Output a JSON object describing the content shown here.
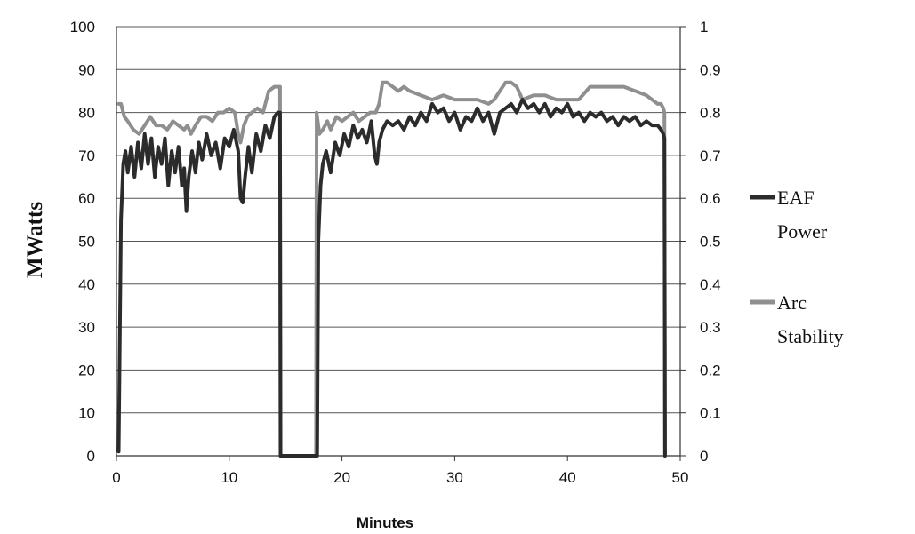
{
  "chart_data": {
    "type": "line",
    "title": "",
    "xlabel": "Minutes",
    "ylabel": "MWatts",
    "xlim": [
      0,
      50
    ],
    "ylim": [
      0,
      100
    ],
    "y2lim": [
      0,
      1
    ],
    "grid": "horizontal",
    "legend_position": "right",
    "x_ticks": [
      "0",
      "10",
      "20",
      "30",
      "40",
      "50"
    ],
    "y_ticks": [
      "0",
      "10",
      "20",
      "30",
      "40",
      "50",
      "60",
      "70",
      "80",
      "90",
      "100"
    ],
    "y2_ticks": [
      "0",
      "0.1",
      "0.2",
      "0.3",
      "0.4",
      "0.5",
      "0.6",
      "0.7",
      "0.8",
      "0.9",
      "1"
    ],
    "series": [
      {
        "name": "EAF Power",
        "legend_lines": [
          "EAF",
          "Power"
        ],
        "axis": "left",
        "color": "#2b2b2b",
        "x": [
          0.2,
          0.4,
          0.6,
          0.8,
          1.0,
          1.3,
          1.6,
          1.9,
          2.2,
          2.5,
          2.8,
          3.1,
          3.4,
          3.7,
          4.0,
          4.3,
          4.6,
          4.9,
          5.2,
          5.5,
          5.8,
          6.0,
          6.2,
          6.4,
          6.7,
          7.0,
          7.3,
          7.6,
          8.0,
          8.4,
          8.8,
          9.2,
          9.6,
          10.0,
          10.4,
          10.8,
          11.0,
          11.2,
          11.4,
          11.7,
          12.0,
          12.4,
          12.8,
          13.2,
          13.6,
          14.0,
          14.3,
          14.5,
          14.55,
          17.7,
          17.8,
          17.9,
          18.1,
          18.3,
          18.6,
          19.0,
          19.4,
          19.8,
          20.2,
          20.6,
          21.0,
          21.4,
          21.8,
          22.2,
          22.6,
          22.9,
          23.1,
          23.3,
          23.6,
          24.0,
          24.5,
          25.0,
          25.5,
          26.0,
          26.5,
          27.0,
          27.5,
          28.0,
          28.5,
          29.0,
          29.5,
          30.0,
          30.5,
          31.0,
          31.5,
          32.0,
          32.5,
          33.0,
          33.5,
          34.0,
          34.5,
          35.0,
          35.5,
          36.0,
          36.5,
          37.0,
          37.5,
          38.0,
          38.5,
          39.0,
          39.5,
          40.0,
          40.5,
          41.0,
          41.5,
          42.0,
          42.5,
          43.0,
          43.5,
          44.0,
          44.5,
          45.0,
          45.5,
          46.0,
          46.5,
          47.0,
          47.5,
          48.0,
          48.3,
          48.5,
          48.6,
          48.65
        ],
        "values": [
          1,
          55,
          68,
          71,
          66,
          72,
          65,
          73,
          67,
          75,
          68,
          74,
          65,
          72,
          68,
          74,
          63,
          71,
          66,
          72,
          63,
          67,
          57,
          65,
          71,
          66,
          73,
          69,
          75,
          70,
          73,
          67,
          74,
          72,
          76,
          71,
          60,
          59,
          65,
          72,
          66,
          75,
          71,
          77,
          74,
          79,
          80,
          80,
          0,
          0,
          0,
          50,
          63,
          68,
          71,
          66,
          73,
          70,
          75,
          72,
          77,
          74,
          76,
          73,
          78,
          70,
          68,
          73,
          76,
          78,
          77,
          78,
          76,
          79,
          77,
          80,
          78,
          82,
          80,
          81,
          78,
          80,
          76,
          79,
          78,
          81,
          78,
          80,
          75,
          80,
          81,
          82,
          80,
          83,
          81,
          82,
          80,
          82,
          79,
          81,
          80,
          82,
          79,
          80,
          78,
          80,
          79,
          80,
          78,
          79,
          77,
          79,
          78,
          79,
          77,
          78,
          77,
          77,
          76,
          75,
          74,
          0
        ]
      },
      {
        "name": "Arc Stability",
        "legend_lines": [
          "Arc",
          "Stability"
        ],
        "axis": "right",
        "color": "#8f8f8f",
        "x": [
          0.2,
          0.4,
          0.7,
          1.0,
          1.5,
          2.0,
          2.5,
          3.0,
          3.5,
          4.0,
          4.5,
          5.0,
          5.5,
          6.0,
          6.3,
          6.6,
          7.0,
          7.5,
          8.0,
          8.5,
          9.0,
          9.5,
          10.0,
          10.5,
          10.8,
          11.0,
          11.3,
          11.6,
          12.0,
          12.5,
          13.0,
          13.5,
          14.0,
          14.3,
          14.5,
          14.55,
          17.7,
          17.75,
          17.8,
          18.0,
          18.3,
          18.7,
          19.0,
          19.5,
          20.0,
          20.5,
          21.0,
          21.5,
          22.0,
          22.5,
          23.0,
          23.3,
          23.6,
          24.0,
          24.5,
          25.0,
          25.5,
          26.0,
          27.0,
          28.0,
          29.0,
          30.0,
          31.0,
          32.0,
          33.0,
          33.5,
          34.0,
          34.5,
          35.0,
          35.5,
          36.0,
          37.0,
          38.0,
          39.0,
          40.0,
          41.0,
          42.0,
          43.0,
          44.0,
          45.0,
          46.0,
          47.0,
          47.5,
          48.0,
          48.3,
          48.5,
          48.6,
          48.65
        ],
        "values": [
          0.82,
          0.82,
          0.79,
          0.78,
          0.76,
          0.75,
          0.77,
          0.79,
          0.77,
          0.77,
          0.76,
          0.78,
          0.77,
          0.76,
          0.77,
          0.75,
          0.77,
          0.79,
          0.79,
          0.78,
          0.8,
          0.8,
          0.81,
          0.8,
          0.75,
          0.73,
          0.77,
          0.79,
          0.8,
          0.81,
          0.8,
          0.85,
          0.86,
          0.86,
          0.86,
          0,
          0,
          0.8,
          0.79,
          0.75,
          0.76,
          0.78,
          0.76,
          0.79,
          0.78,
          0.79,
          0.8,
          0.78,
          0.79,
          0.8,
          0.8,
          0.82,
          0.87,
          0.87,
          0.86,
          0.85,
          0.86,
          0.85,
          0.84,
          0.83,
          0.84,
          0.83,
          0.83,
          0.83,
          0.82,
          0.83,
          0.85,
          0.87,
          0.87,
          0.86,
          0.83,
          0.84,
          0.84,
          0.83,
          0.83,
          0.83,
          0.86,
          0.86,
          0.86,
          0.86,
          0.85,
          0.84,
          0.83,
          0.82,
          0.82,
          0.81,
          0.8,
          0
        ]
      }
    ]
  }
}
